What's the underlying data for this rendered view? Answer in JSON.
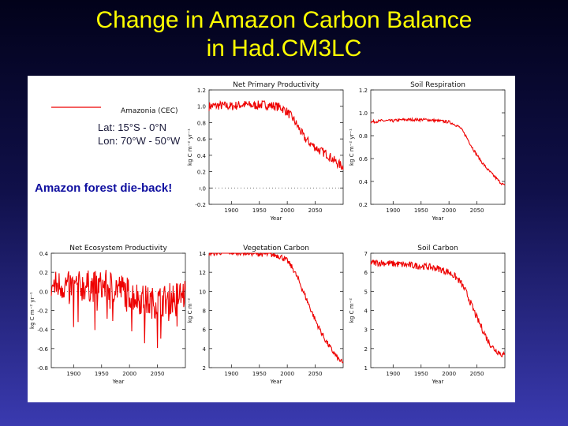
{
  "slide": {
    "title_line1": "Change in Amazon Carbon Balance",
    "title_line2": "in Had.CM3LC",
    "callout": "Amazon forest die-back!",
    "region_lat": "Lat: 15°S - 0°N",
    "region_lon": "Lon: 70°W - 50°W",
    "legend_label": "Amazonia (CEC)",
    "series_color": "#ee0000"
  },
  "chart_data": [
    {
      "type": "line",
      "title": "Net Primary Productivity",
      "xlabel": "Year",
      "ylabel": "kg C m⁻² yr⁻¹",
      "xlim": [
        1860,
        2100
      ],
      "ylim": [
        -0.2,
        1.2
      ],
      "xticks": [
        1900,
        1950,
        2000,
        2050
      ],
      "yticks": [
        -0.2,
        0.0,
        0.2,
        0.4,
        0.6,
        0.8,
        1.0,
        1.2
      ],
      "ytick_labels": [
        "-0.2",
        "0.0",
        "0.2",
        "0.4",
        "0.6",
        "0.8",
        "1.0",
        "1.2"
      ],
      "series": [
        {
          "x": [
            1860,
            1880,
            1900,
            1920,
            1940,
            1960,
            1980,
            1990,
            2000,
            2010,
            2020,
            2030,
            2040,
            2050,
            2060,
            2070,
            2080,
            2090,
            2100
          ],
          "values": [
            1.0,
            1.01,
            1.0,
            1.02,
            1.01,
            1.02,
            1.0,
            0.98,
            0.93,
            0.85,
            0.74,
            0.62,
            0.55,
            0.5,
            0.45,
            0.42,
            0.36,
            0.3,
            0.26
          ]
        }
      ]
    },
    {
      "type": "line",
      "title": "Soil Respiration",
      "xlabel": "Year",
      "ylabel": "kg C m⁻² yr⁻¹",
      "xlim": [
        1860,
        2100
      ],
      "ylim": [
        0.2,
        1.2
      ],
      "xticks": [
        1900,
        1950,
        2000,
        2050
      ],
      "yticks": [
        0.2,
        0.4,
        0.6,
        0.8,
        1.0,
        1.2
      ],
      "ytick_labels": [
        "0.2",
        "0.4",
        "0.6",
        "0.8",
        "1.0",
        "1.2"
      ],
      "series": [
        {
          "x": [
            1860,
            1880,
            1900,
            1920,
            1940,
            1960,
            1980,
            2000,
            2010,
            2020,
            2030,
            2040,
            2050,
            2060,
            2070,
            2080,
            2090,
            2100
          ],
          "values": [
            0.92,
            0.93,
            0.93,
            0.94,
            0.94,
            0.94,
            0.93,
            0.92,
            0.9,
            0.87,
            0.8,
            0.71,
            0.63,
            0.56,
            0.5,
            0.45,
            0.4,
            0.36
          ]
        }
      ]
    },
    {
      "type": "line",
      "title": "Net Ecosystem Productivity",
      "xlabel": "Year",
      "ylabel": "kg C m⁻² yr⁻¹",
      "xlim": [
        1860,
        2100
      ],
      "ylim": [
        -0.8,
        0.4
      ],
      "xticks": [
        1900,
        1950,
        2000,
        2050
      ],
      "yticks": [
        -0.8,
        -0.6,
        -0.4,
        -0.2,
        0.0,
        0.2,
        0.4
      ],
      "ytick_labels": [
        "-0.8",
        "-0.6",
        "-0.4",
        "-0.2",
        "0.0",
        "0.2",
        "0.4"
      ],
      "series": [
        {
          "x": [
            1860,
            1880,
            1900,
            1920,
            1940,
            1960,
            1980,
            2000,
            2020,
            2040,
            2060,
            2080,
            2100
          ],
          "values": [
            0.05,
            0.07,
            0.04,
            0.06,
            0.05,
            0.06,
            0.04,
            -0.02,
            -0.08,
            -0.12,
            -0.1,
            -0.06,
            -0.03
          ]
        }
      ]
    },
    {
      "type": "line",
      "title": "Vegetation Carbon",
      "xlabel": "Year",
      "ylabel": "kg C m⁻²",
      "xlim": [
        1860,
        2100
      ],
      "ylim": [
        2,
        14
      ],
      "xticks": [
        1900,
        1950,
        2000,
        2050
      ],
      "yticks": [
        2,
        4,
        6,
        8,
        10,
        12,
        14
      ],
      "ytick_labels": [
        "2",
        "4",
        "6",
        "8",
        "10",
        "12",
        "14"
      ],
      "series": [
        {
          "x": [
            1860,
            1880,
            1900,
            1920,
            1940,
            1960,
            1980,
            1990,
            2000,
            2010,
            2020,
            2030,
            2040,
            2050,
            2060,
            2070,
            2080,
            2090,
            2100
          ],
          "values": [
            14.0,
            14.1,
            14.1,
            14.1,
            14.0,
            13.9,
            13.8,
            13.6,
            13.2,
            12.4,
            11.2,
            9.8,
            8.4,
            7.0,
            5.8,
            4.7,
            3.8,
            3.0,
            2.4
          ]
        }
      ]
    },
    {
      "type": "line",
      "title": "Soil Carbon",
      "xlabel": "Year",
      "ylabel": "kg C m⁻²",
      "xlim": [
        1860,
        2100
      ],
      "ylim": [
        1,
        7
      ],
      "xticks": [
        1900,
        1950,
        2000,
        2050
      ],
      "yticks": [
        1,
        2,
        3,
        4,
        5,
        6,
        7
      ],
      "ytick_labels": [
        "1",
        "2",
        "3",
        "4",
        "5",
        "6",
        "7"
      ],
      "series": [
        {
          "x": [
            1860,
            1880,
            1900,
            1920,
            1940,
            1960,
            1980,
            2000,
            2010,
            2020,
            2030,
            2040,
            2050,
            2060,
            2070,
            2080,
            2090,
            2100
          ],
          "values": [
            6.5,
            6.5,
            6.45,
            6.4,
            6.35,
            6.3,
            6.2,
            6.0,
            5.8,
            5.5,
            5.0,
            4.3,
            3.6,
            3.0,
            2.4,
            2.0,
            1.8,
            1.6
          ]
        }
      ]
    }
  ]
}
